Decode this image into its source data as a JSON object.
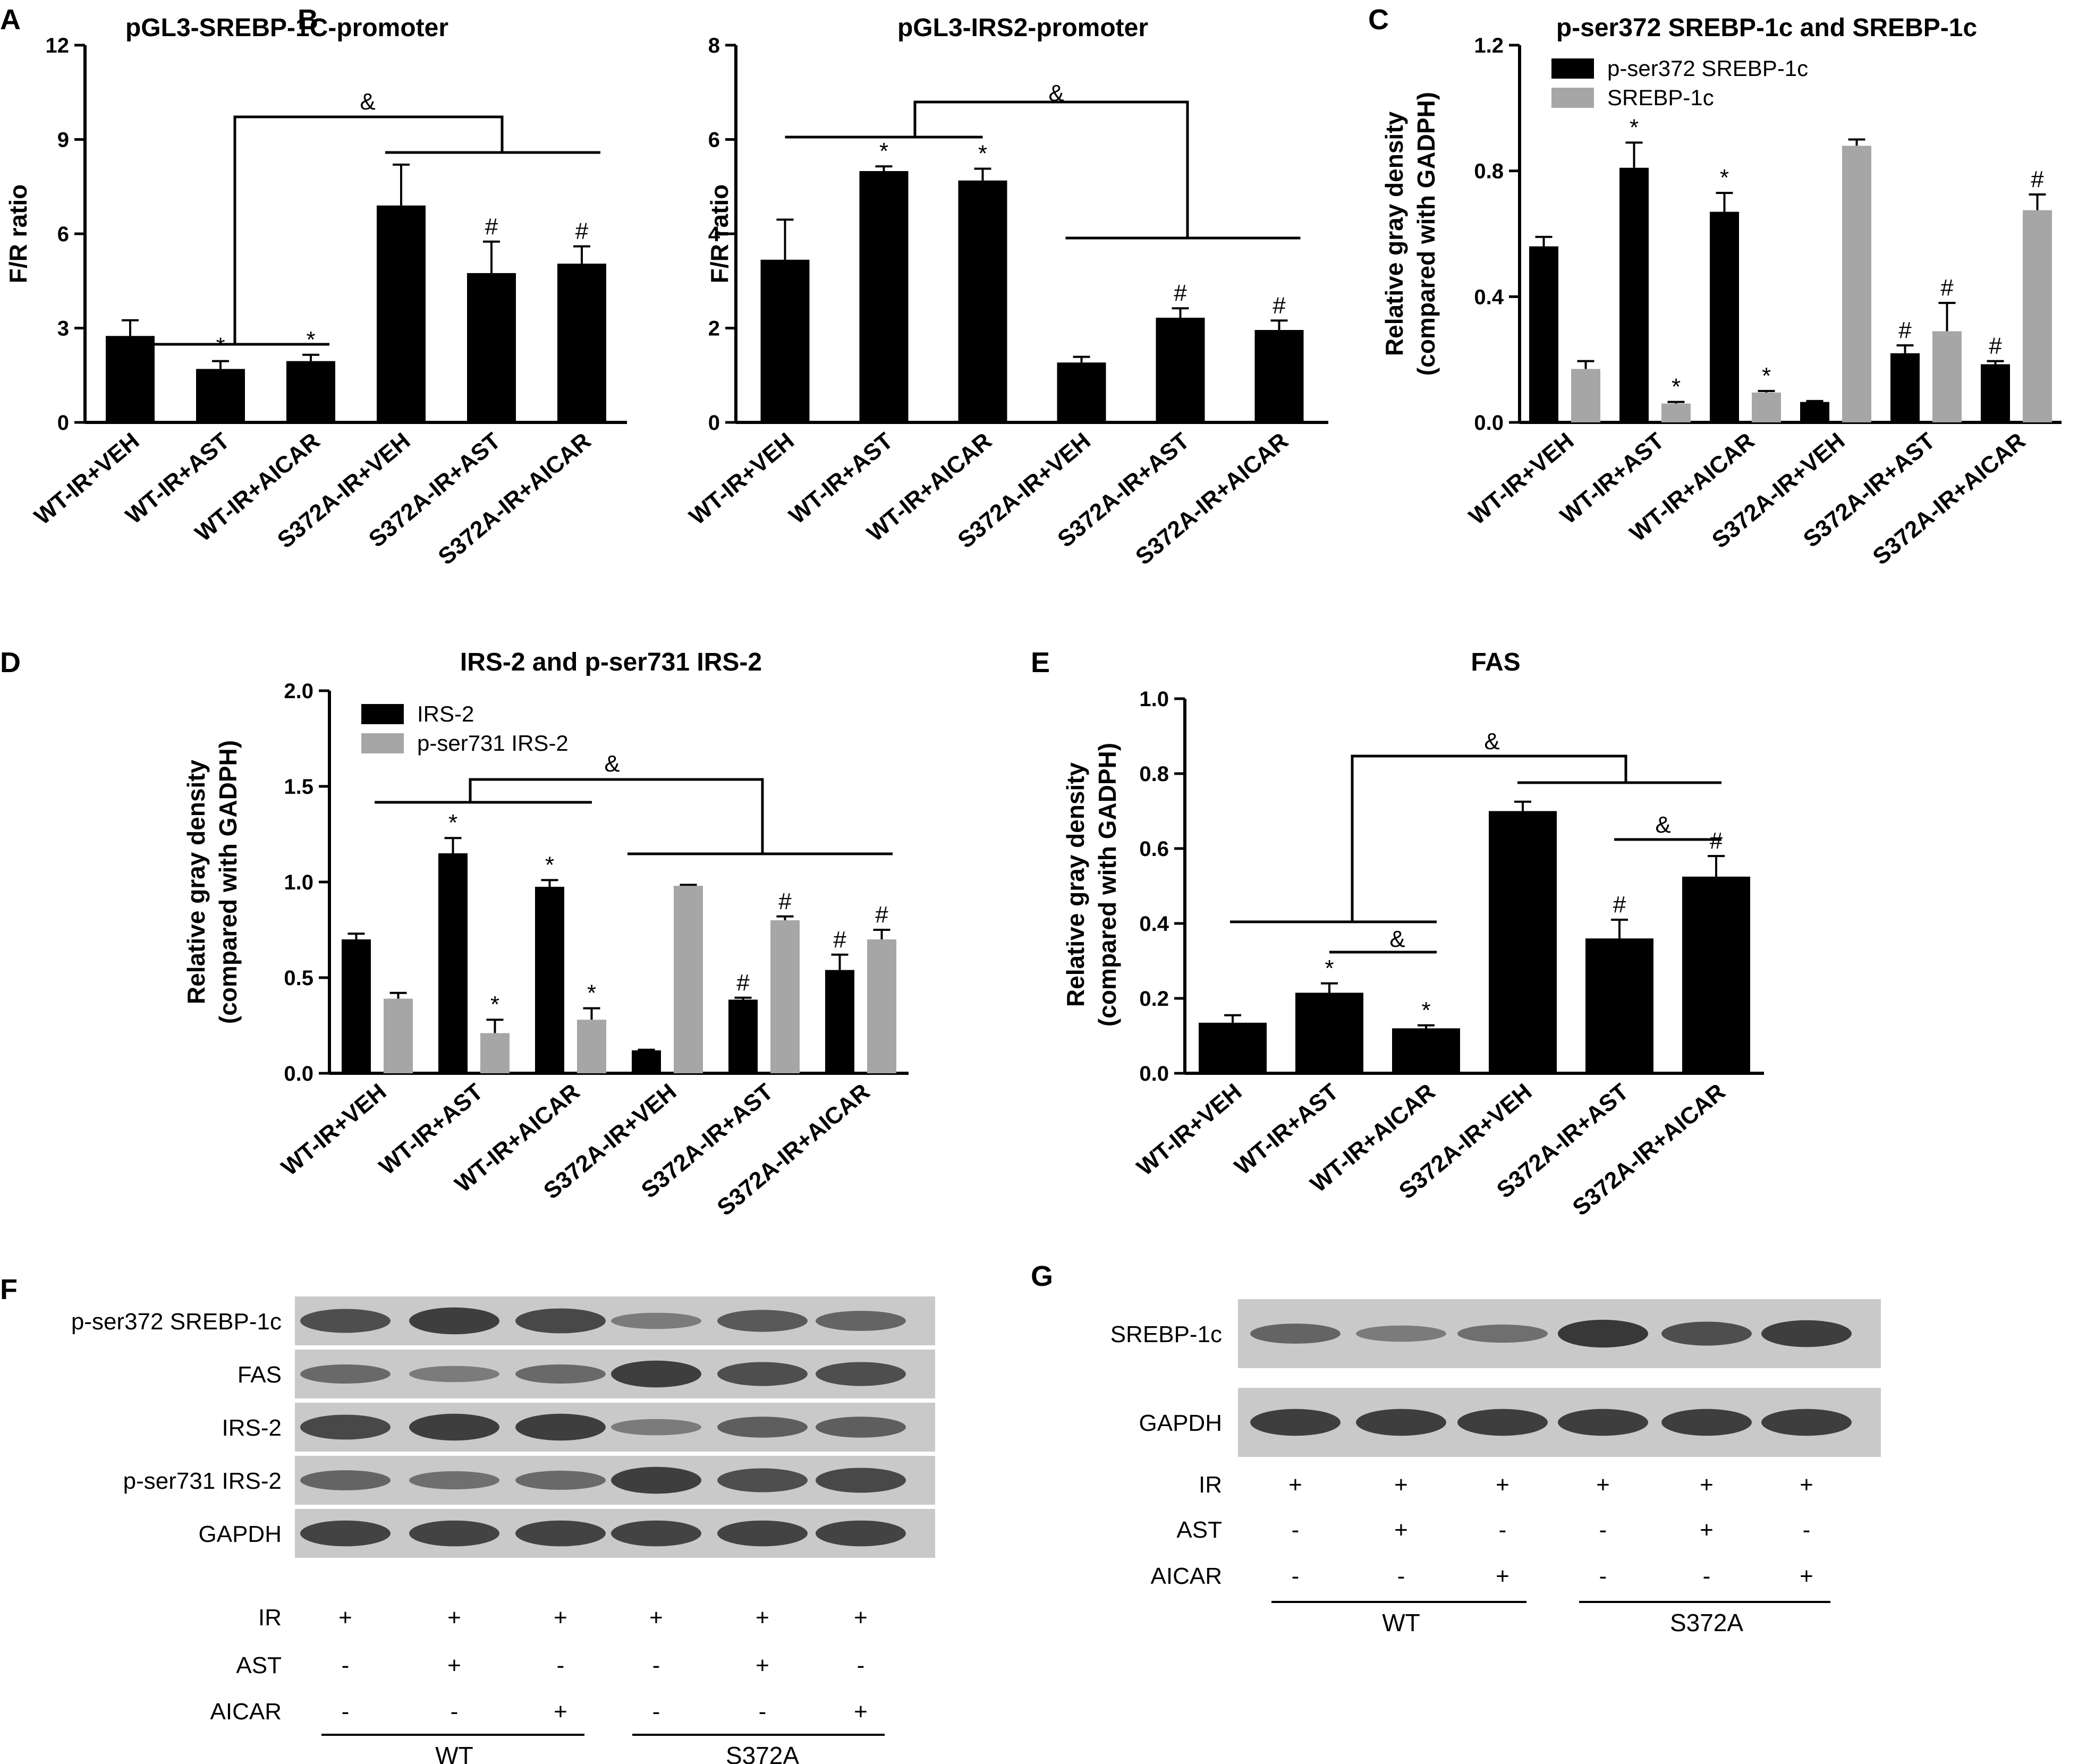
{
  "colors": {
    "black_bar": "#000000",
    "gray_bar": "#a6a6a6",
    "membrane": "#c9c9c9",
    "band": "#2a2a2a"
  },
  "panels": {
    "A": {
      "letter": "A"
    },
    "B": {
      "letter": "B"
    },
    "C": {
      "letter": "C"
    },
    "D": {
      "letter": "D"
    },
    "E": {
      "letter": "E"
    },
    "F": {
      "letter": "F"
    },
    "G": {
      "letter": "G"
    }
  },
  "categories": [
    "WT-IR+VEH",
    "WT-IR+AST",
    "WT-IR+AICAR",
    "S372A-IR+VEH",
    "S372A-IR+AST",
    "S372A-IR+AICAR"
  ],
  "chart_data": [
    {
      "panel": "A",
      "type": "bar",
      "title": "pGL3-SREBP-1C-promoter",
      "ylabel": "F/R ratio",
      "ylabel2": "",
      "ylim": [
        0,
        12
      ],
      "yticks": [
        "0",
        "3",
        "6",
        "9",
        "12"
      ],
      "categories": [
        "WT-IR+VEH",
        "WT-IR+AST",
        "WT-IR+AICAR",
        "S372A-IR+VEH",
        "S372A-IR+AST",
        "S372A-IR+AICAR"
      ],
      "series": [
        {
          "values": [
            2.75,
            1.7,
            1.95,
            6.9,
            4.75,
            5.05
          ],
          "errors": [
            0.5,
            0.25,
            0.2,
            1.3,
            1.0,
            0.55
          ],
          "marks": [
            "",
            "*",
            "*",
            "",
            "#",
            "#"
          ]
        }
      ],
      "bracket_marks": [
        "&"
      ]
    },
    {
      "panel": "B",
      "type": "bar",
      "title": "pGL3-IRS2-promoter",
      "ylabel": "F/R ratio",
      "ylabel2": "",
      "ylim": [
        0,
        8
      ],
      "yticks": [
        "0",
        "2",
        "4",
        "6",
        "8"
      ],
      "categories": [
        "WT-IR+VEH",
        "WT-IR+AST",
        "WT-IR+AICAR",
        "S372A-IR+VEH",
        "S372A-IR+AST",
        "S372A-IR+AICAR"
      ],
      "series": [
        {
          "values": [
            3.45,
            5.33,
            5.13,
            1.27,
            2.22,
            1.96
          ],
          "errors": [
            0.85,
            0.1,
            0.25,
            0.12,
            0.2,
            0.2
          ],
          "marks": [
            "",
            "*",
            "*",
            "",
            "#",
            "#"
          ]
        }
      ],
      "bracket_marks": [
        "&"
      ]
    },
    {
      "panel": "C",
      "type": "bar",
      "title": "p-ser372 SREBP-1c and SREBP-1c",
      "ylabel": "Relative gray density",
      "ylabel2": "(compared with GADPH)",
      "ylim": [
        0,
        1.2
      ],
      "yticks": [
        "0.0",
        "0.4",
        "0.8",
        "1.2"
      ],
      "legend_position": "top-left",
      "categories": [
        "WT-IR+VEH",
        "WT-IR+AST",
        "WT-IR+AICAR",
        "S372A-IR+VEH",
        "S372A-IR+AST",
        "S372A-IR+AICAR"
      ],
      "series": [
        {
          "name": "p-ser372 SREBP-1c",
          "color": "#000000",
          "values": [
            0.56,
            0.81,
            0.67,
            0.065,
            0.22,
            0.185
          ],
          "errors": [
            0.03,
            0.08,
            0.06,
            0.003,
            0.025,
            0.01
          ],
          "marks": [
            "",
            "*",
            "*",
            "",
            "#",
            "#"
          ]
        },
        {
          "name": "SREBP-1c",
          "color": "#a6a6a6",
          "values": [
            0.17,
            0.06,
            0.095,
            0.88,
            0.29,
            0.675
          ],
          "errors": [
            0.025,
            0.005,
            0.005,
            0.02,
            0.09,
            0.05
          ],
          "marks": [
            "",
            "*",
            "*",
            "",
            "#",
            "#"
          ]
        }
      ]
    },
    {
      "panel": "D",
      "type": "bar",
      "title": "IRS-2  and p-ser731 IRS-2",
      "ylabel": "Relative gray density",
      "ylabel2": "(compared with GADPH)",
      "ylim": [
        0,
        2.0
      ],
      "yticks": [
        "0.0",
        "0.5",
        "1.0",
        "1.5",
        "2.0"
      ],
      "legend_position": "top-left",
      "categories": [
        "WT-IR+VEH",
        "WT-IR+AST",
        "WT-IR+AICAR",
        "S372A-IR+VEH",
        "S372A-IR+AST",
        "S372A-IR+AICAR"
      ],
      "series": [
        {
          "name": "IRS-2",
          "color": "#000000",
          "values": [
            0.7,
            1.15,
            0.975,
            0.12,
            0.385,
            0.54
          ],
          "errors": [
            0.03,
            0.08,
            0.035,
            0.003,
            0.01,
            0.08
          ],
          "marks": [
            "",
            "*",
            "*",
            "",
            "#",
            "#"
          ]
        },
        {
          "name": "p-ser731 IRS-2",
          "color": "#a6a6a6",
          "values": [
            0.39,
            0.21,
            0.28,
            0.98,
            0.8,
            0.7
          ],
          "errors": [
            0.03,
            0.07,
            0.06,
            0.005,
            0.02,
            0.05
          ],
          "marks": [
            "",
            "*",
            "*",
            "",
            "#",
            "#"
          ]
        }
      ],
      "bracket_marks": [
        "&"
      ]
    },
    {
      "panel": "E",
      "type": "bar",
      "title": "FAS",
      "ylabel": "Relative gray density",
      "ylabel2": "(compared with GADPH)",
      "ylim": [
        0,
        1.0
      ],
      "yticks": [
        "0.0",
        "0.2",
        "0.4",
        "0.6",
        "0.8",
        "1.0"
      ],
      "categories": [
        "WT-IR+VEH",
        "WT-IR+AST",
        "WT-IR+AICAR",
        "S372A-IR+VEH",
        "S372A-IR+AST",
        "S372A-IR+AICAR"
      ],
      "series": [
        {
          "values": [
            0.135,
            0.215,
            0.12,
            0.7,
            0.36,
            0.525
          ],
          "errors": [
            0.02,
            0.025,
            0.008,
            0.025,
            0.05,
            0.055
          ],
          "marks": [
            "",
            "*",
            "*",
            "",
            "#",
            "#"
          ]
        }
      ],
      "bracket_marks": [
        "&",
        "&",
        "&"
      ]
    }
  ],
  "blots": {
    "F": {
      "rows": [
        "p-ser372 SREBP-1c",
        "FAS",
        "IRS-2",
        "p-ser731 IRS-2",
        "GAPDH"
      ],
      "intensity": [
        [
          0.75,
          0.9,
          0.8,
          0.35,
          0.65,
          0.55
        ],
        [
          0.5,
          0.35,
          0.5,
          0.9,
          0.75,
          0.75
        ],
        [
          0.8,
          0.9,
          0.9,
          0.35,
          0.6,
          0.6
        ],
        [
          0.55,
          0.45,
          0.5,
          0.9,
          0.75,
          0.8
        ],
        [
          0.85,
          0.85,
          0.85,
          0.85,
          0.85,
          0.85
        ]
      ]
    },
    "G": {
      "rows": [
        "SREBP-1c",
        "GAPDH"
      ],
      "intensity": [
        [
          0.55,
          0.35,
          0.45,
          0.95,
          0.75,
          0.9
        ],
        [
          0.9,
          0.9,
          0.9,
          0.9,
          0.9,
          0.9
        ]
      ]
    },
    "treatments": [
      {
        "label": "IR",
        "values": [
          "+",
          "+",
          "+",
          "+",
          "+",
          "+"
        ]
      },
      {
        "label": "AST",
        "values": [
          "-",
          "+",
          "-",
          "-",
          "+",
          "-"
        ]
      },
      {
        "label": "AICAR",
        "values": [
          "-",
          "-",
          "+",
          "-",
          "-",
          "+"
        ]
      }
    ],
    "groups": [
      "WT",
      "S372A"
    ]
  }
}
